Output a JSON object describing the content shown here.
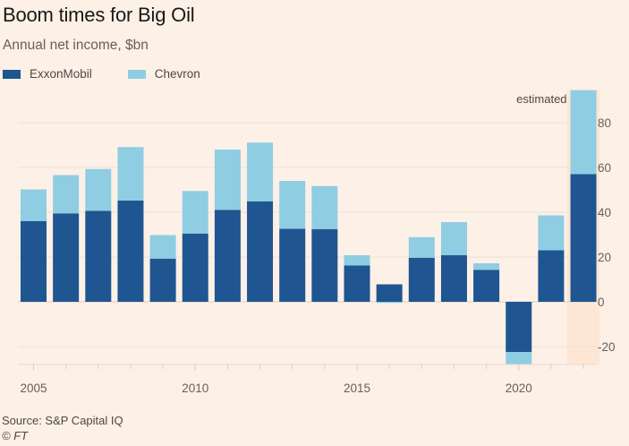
{
  "header": {
    "title": "Boom times for Big Oil",
    "subtitle": "Annual net income, $bn"
  },
  "legend": [
    {
      "name": "ExxonMobil",
      "color": "#1f5591"
    },
    {
      "name": "Chevron",
      "color": "#8fcde3"
    }
  ],
  "footer": {
    "source": "Source: S&P Capital IQ",
    "copyright": "© FT"
  },
  "chart_data": {
    "type": "bar",
    "stacked": true,
    "title": "Boom times for Big Oil",
    "subtitle": "Annual net income, $bn",
    "xlabel": "",
    "ylabel": "",
    "ylim": [
      -28,
      96
    ],
    "yticks": [
      -20,
      0,
      20,
      40,
      60,
      80
    ],
    "xticks": [
      2005,
      2010,
      2015,
      2020
    ],
    "grid": true,
    "legend_position": "top-left",
    "categories": [
      2005,
      2006,
      2007,
      2008,
      2009,
      2010,
      2011,
      2012,
      2013,
      2014,
      2015,
      2016,
      2017,
      2018,
      2019,
      2020,
      2021,
      2022
    ],
    "series": [
      {
        "name": "ExxonMobil",
        "color": "#1f5591",
        "values": [
          36.1,
          39.5,
          40.6,
          45.2,
          19.3,
          30.5,
          41.1,
          44.9,
          32.6,
          32.5,
          16.2,
          7.8,
          19.7,
          20.8,
          14.3,
          -22.4,
          23.0,
          57.0
        ]
      },
      {
        "name": "Chevron",
        "color": "#8fcde3",
        "values": [
          14.1,
          17.1,
          18.7,
          23.9,
          10.5,
          19.0,
          26.9,
          26.2,
          21.4,
          19.2,
          4.6,
          -0.5,
          9.2,
          14.8,
          2.9,
          -5.5,
          15.6,
          37.5
        ]
      }
    ],
    "annotations": [
      {
        "text": "estimated",
        "category": 2022
      }
    ],
    "shaded_regions": [
      {
        "category": 2022,
        "label": "estimated"
      }
    ]
  }
}
